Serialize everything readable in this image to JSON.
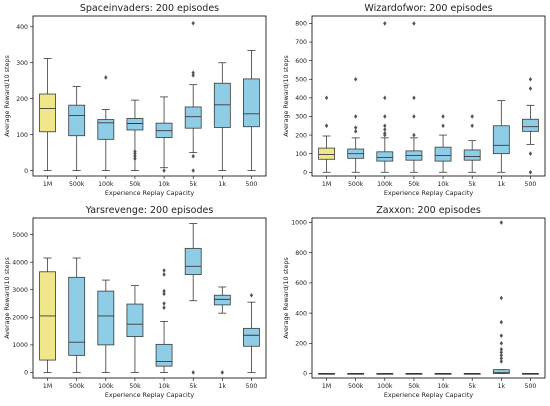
{
  "chart_data": [
    {
      "type": "box",
      "title": "Spaceinvaders: 200 episodes",
      "xlabel": "Experience Replay Capacity",
      "ylabel": "Average Reward/10 steps",
      "categories": [
        "1M",
        "500k",
        "100k",
        "50k",
        "10k",
        "5k",
        "1k",
        "500"
      ],
      "ylim": [
        -15,
        430
      ],
      "yticks": [
        0,
        100,
        200,
        300,
        400
      ],
      "boxes": [
        {
          "whislo": 0,
          "q1": 108,
          "med": 173,
          "q3": 213,
          "whishi": 312,
          "fliers": []
        },
        {
          "whislo": 0,
          "q1": 97,
          "med": 153,
          "q3": 182,
          "whishi": 234,
          "fliers": []
        },
        {
          "whislo": 0,
          "q1": 87,
          "med": 133,
          "q3": 142,
          "whishi": 170,
          "fliers": [
            259
          ]
        },
        {
          "whislo": 0,
          "q1": 113,
          "med": 131,
          "q3": 145,
          "whishi": 196,
          "fliers": [
            53,
            47,
            40,
            33
          ]
        },
        {
          "whislo": 8,
          "q1": 92,
          "med": 111,
          "q3": 132,
          "whishi": 205,
          "fliers": [
            0
          ]
        },
        {
          "whislo": 50,
          "q1": 118,
          "med": 150,
          "q3": 177,
          "whishi": 239,
          "fliers": [
            410,
            272,
            265,
            40,
            0
          ]
        },
        {
          "whislo": 0,
          "q1": 120,
          "med": 183,
          "q3": 243,
          "whishi": 300,
          "fliers": []
        },
        {
          "whislo": 0,
          "q1": 122,
          "med": 158,
          "q3": 255,
          "whishi": 334,
          "fliers": []
        }
      ]
    },
    {
      "type": "box",
      "title": "Wizardofwor: 200 episodes",
      "xlabel": "Experience Replay Capacity",
      "ylabel": "Average Reward/10 steps",
      "categories": [
        "1M",
        "500k",
        "100k",
        "50k",
        "10k",
        "5k",
        "1k",
        "500"
      ],
      "ylim": [
        -20,
        840
      ],
      "yticks": [
        0,
        100,
        200,
        300,
        400,
        500,
        600,
        700,
        800
      ],
      "boxes": [
        {
          "whislo": 0,
          "q1": 70,
          "med": 95,
          "q3": 130,
          "whishi": 195,
          "fliers": [
            400,
            250
          ]
        },
        {
          "whislo": 0,
          "q1": 75,
          "med": 100,
          "q3": 125,
          "whishi": 185,
          "fliers": [
            500,
            300,
            240,
            220
          ]
        },
        {
          "whislo": 0,
          "q1": 60,
          "med": 80,
          "q3": 110,
          "whishi": 185,
          "fliers": [
            800,
            400,
            300,
            250,
            230,
            210,
            200
          ]
        },
        {
          "whislo": 0,
          "q1": 65,
          "med": 90,
          "q3": 115,
          "whishi": 185,
          "fliers": [
            800,
            400,
            300,
            200
          ]
        },
        {
          "whislo": 0,
          "q1": 60,
          "med": 90,
          "q3": 135,
          "whishi": 200,
          "fliers": [
            300,
            250
          ]
        },
        {
          "whislo": 0,
          "q1": 65,
          "med": 85,
          "q3": 120,
          "whishi": 170,
          "fliers": [
            300,
            250
          ]
        },
        {
          "whislo": 0,
          "q1": 100,
          "med": 145,
          "q3": 250,
          "whishi": 385,
          "fliers": []
        },
        {
          "whislo": 150,
          "q1": 220,
          "med": 245,
          "q3": 285,
          "whishi": 360,
          "fliers": [
            500,
            450,
            100,
            0
          ]
        }
      ]
    },
    {
      "type": "box",
      "title": "Yarsrevenge: 200 episodes",
      "xlabel": "Experience Replay Capacity",
      "ylabel": "Average Reward/10 steps",
      "categories": [
        "1M",
        "500k",
        "100k",
        "50k",
        "10k",
        "5k",
        "1k",
        "500"
      ],
      "ylim": [
        -200,
        5600
      ],
      "yticks": [
        0,
        1000,
        2000,
        3000,
        4000,
        5000
      ],
      "boxes": [
        {
          "whislo": 0,
          "q1": 450,
          "med": 2050,
          "q3": 3650,
          "whishi": 4150,
          "fliers": []
        },
        {
          "whislo": 0,
          "q1": 620,
          "med": 1100,
          "q3": 3450,
          "whishi": 4150,
          "fliers": []
        },
        {
          "whislo": 0,
          "q1": 1000,
          "med": 2050,
          "q3": 2950,
          "whishi": 3350,
          "fliers": []
        },
        {
          "whislo": 0,
          "q1": 1300,
          "med": 1750,
          "q3": 2480,
          "whishi": 3150,
          "fliers": []
        },
        {
          "whislo": 0,
          "q1": 230,
          "med": 400,
          "q3": 1020,
          "whishi": 1850,
          "fliers": [
            3700,
            3550,
            2950,
            2850,
            2500,
            2350
          ]
        },
        {
          "whislo": 2600,
          "q1": 3550,
          "med": 3850,
          "q3": 4500,
          "whishi": 5400,
          "fliers": [
            0
          ]
        },
        {
          "whislo": 2150,
          "q1": 2450,
          "med": 2650,
          "q3": 2800,
          "whishi": 3100,
          "fliers": [
            0
          ]
        },
        {
          "whislo": 0,
          "q1": 950,
          "med": 1350,
          "q3": 1600,
          "whishi": 2550,
          "fliers": [
            2800
          ]
        }
      ]
    },
    {
      "type": "box",
      "title": "Zaxxon: 200 episodes",
      "xlabel": "Experience Replay Capacity",
      "ylabel": "Average Reward/10 steps",
      "categories": [
        "1M",
        "500k",
        "100k",
        "50k",
        "10k",
        "5k",
        "1k",
        "500"
      ],
      "ylim": [
        -30,
        1030
      ],
      "yticks": [
        0,
        200,
        400,
        600,
        800,
        1000
      ],
      "boxes": [
        {
          "whislo": 0,
          "q1": 0,
          "med": 0,
          "q3": 0,
          "whishi": 0,
          "fliers": []
        },
        {
          "whislo": 0,
          "q1": 0,
          "med": 0,
          "q3": 0,
          "whishi": 0,
          "fliers": []
        },
        {
          "whislo": 0,
          "q1": 0,
          "med": 0,
          "q3": 0,
          "whishi": 0,
          "fliers": []
        },
        {
          "whislo": 0,
          "q1": 0,
          "med": 0,
          "q3": 0,
          "whishi": 0,
          "fliers": []
        },
        {
          "whislo": 0,
          "q1": 0,
          "med": 0,
          "q3": 0,
          "whishi": 0,
          "fliers": []
        },
        {
          "whislo": 0,
          "q1": 0,
          "med": 0,
          "q3": 0,
          "whishi": 0,
          "fliers": []
        },
        {
          "whislo": 0,
          "q1": 0,
          "med": 5,
          "q3": 25,
          "whishi": 25,
          "fliers": [
            1000,
            500,
            340,
            250,
            200,
            160,
            140,
            120,
            100,
            80
          ]
        },
        {
          "whislo": 0,
          "q1": 0,
          "med": 0,
          "q3": 0,
          "whishi": 0,
          "fliers": []
        }
      ]
    }
  ],
  "colors": {
    "highlight_box": "#f0e68c",
    "box": "#8fcde6",
    "line": "#3a3a3a",
    "axis": "#000000",
    "flier": "#555555"
  }
}
